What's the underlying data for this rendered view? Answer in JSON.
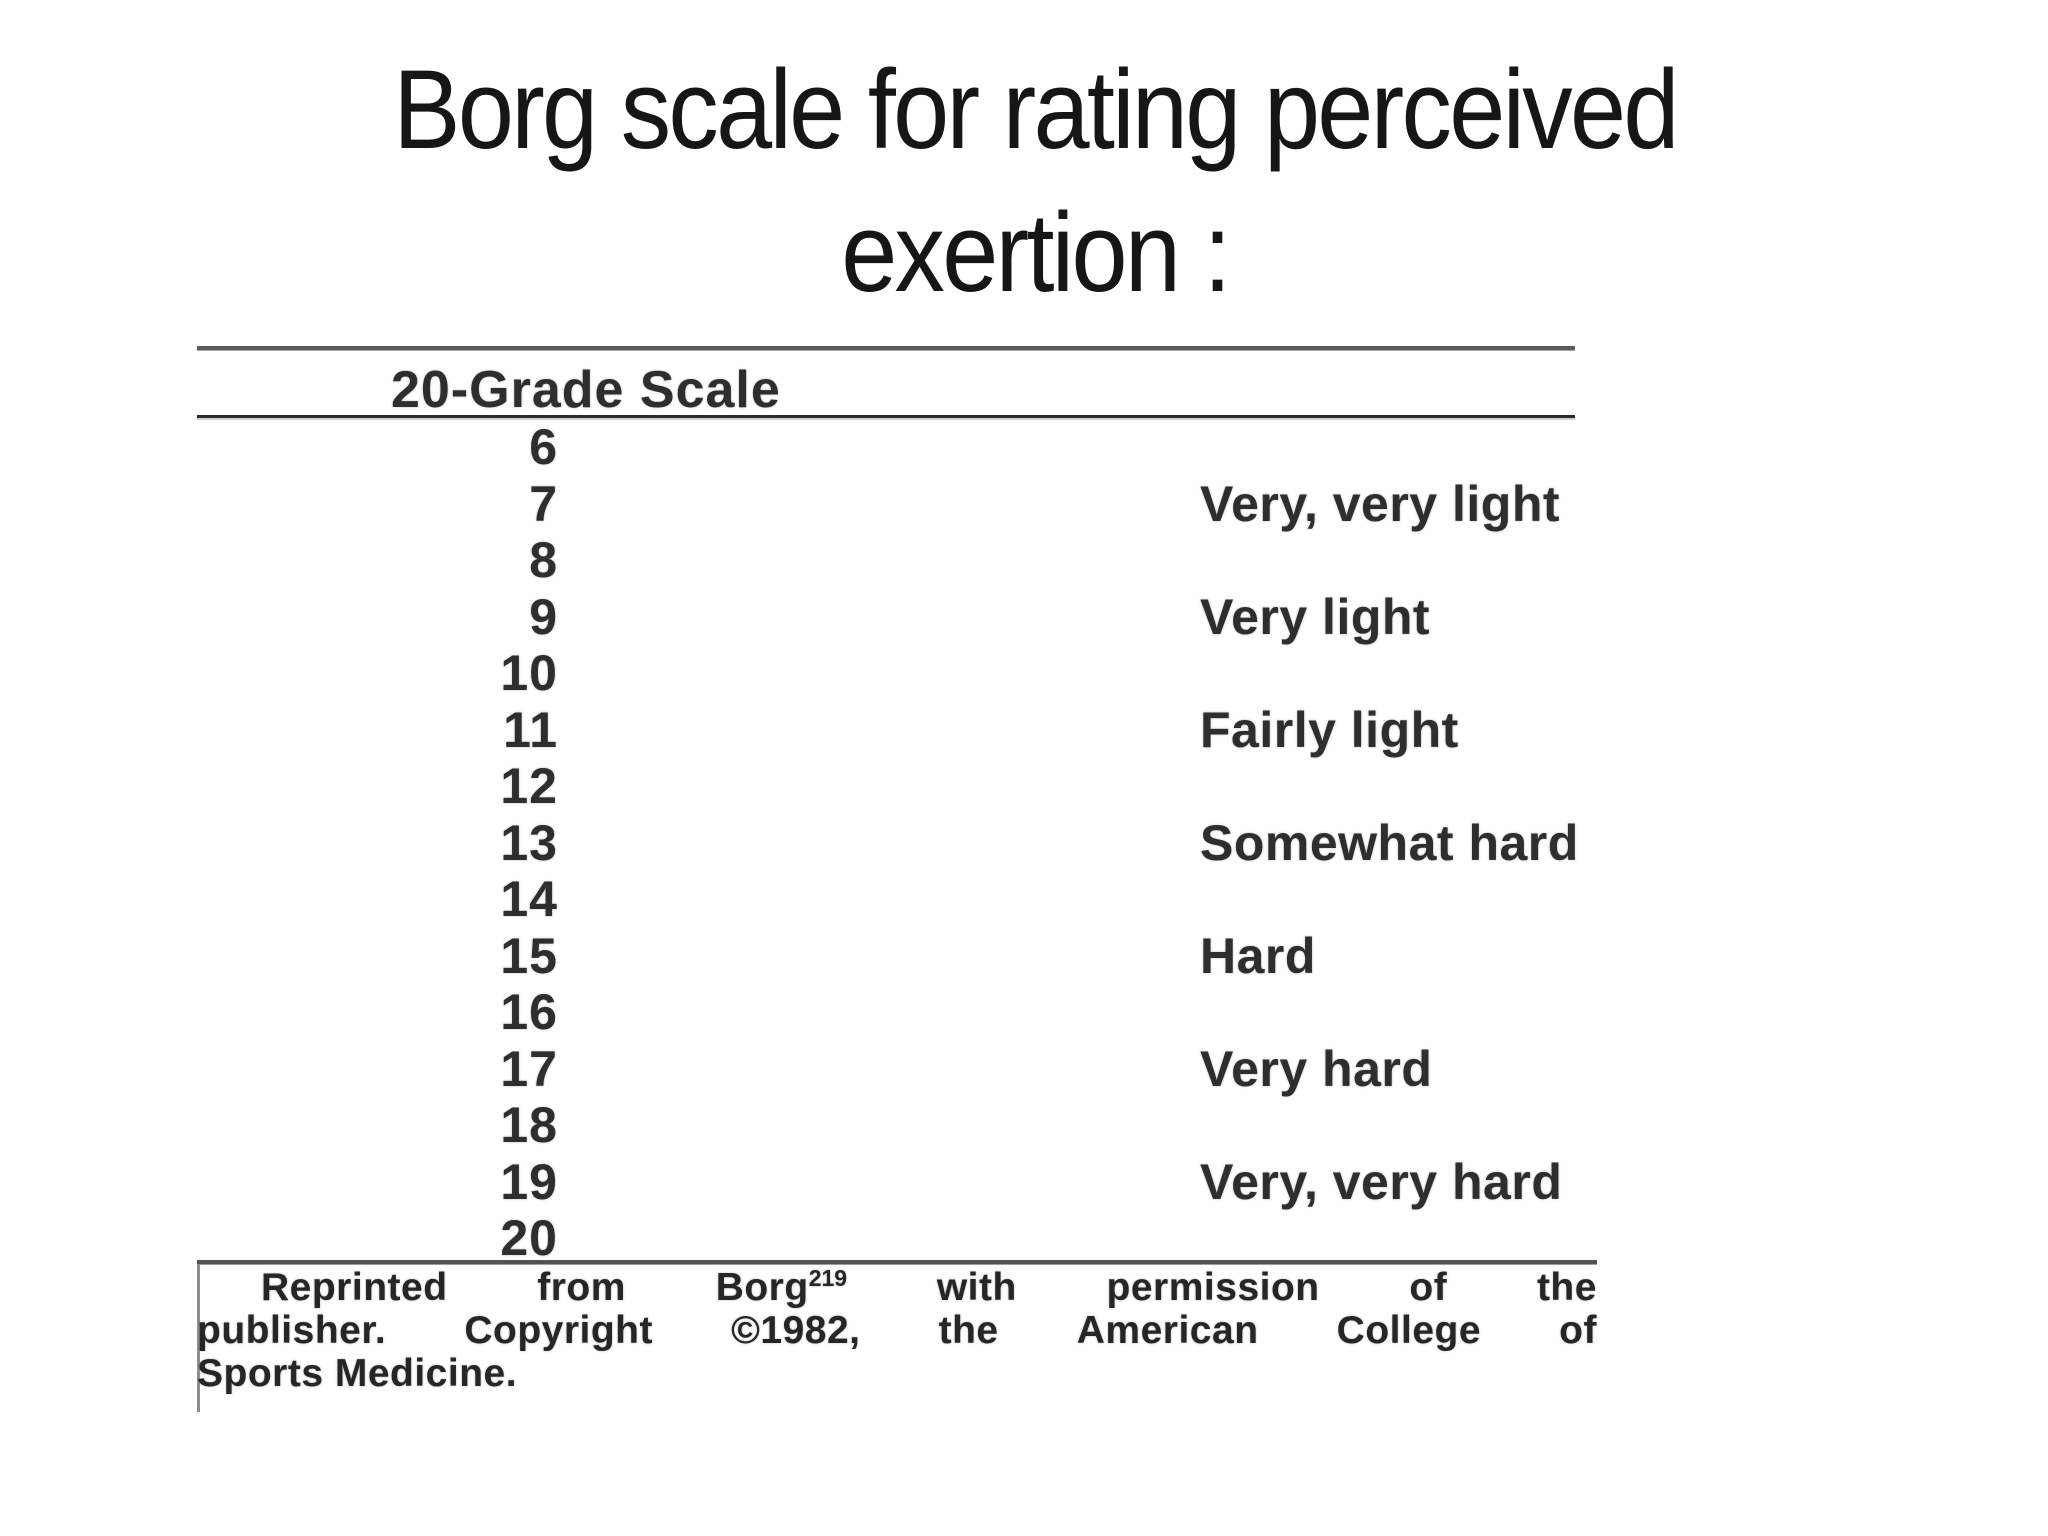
{
  "slide": {
    "title_line1": "Borg scale for rating perceived",
    "title_line2": "exertion :"
  },
  "table": {
    "header": "20-Grade Scale",
    "rows": [
      {
        "grade": "6",
        "label": ""
      },
      {
        "grade": "7",
        "label": "Very, very light"
      },
      {
        "grade": "8",
        "label": ""
      },
      {
        "grade": "9",
        "label": "Very light"
      },
      {
        "grade": "10",
        "label": ""
      },
      {
        "grade": "11",
        "label": "Fairly light"
      },
      {
        "grade": "12",
        "label": ""
      },
      {
        "grade": "13",
        "label": "Somewhat hard"
      },
      {
        "grade": "14",
        "label": ""
      },
      {
        "grade": "15",
        "label": "Hard"
      },
      {
        "grade": "16",
        "label": ""
      },
      {
        "grade": "17",
        "label": "Very hard"
      },
      {
        "grade": "18",
        "label": ""
      },
      {
        "grade": "19",
        "label": "Very, very hard"
      },
      {
        "grade": "20",
        "label": ""
      }
    ]
  },
  "citation": {
    "l1w1": "Reprinted",
    "l1w2": "from",
    "l1w3base": "Borg",
    "l1w3sup": "219",
    "l1w4": "with",
    "l1w5": "permission",
    "l1w6": "of",
    "l1w7": "the",
    "l2w1": "publisher.",
    "l2w2": "Copyright",
    "l2w3": "©1982,",
    "l2w4": "the",
    "l2w5": "American",
    "l2w6": "College",
    "l2w7": "of",
    "line3": "Sports Medicine."
  },
  "colors": {
    "background": "#ffffff",
    "title_text": "#161616",
    "scan_text": "#2e2e2e",
    "rule_dark": "#2b2b2b",
    "rule_gray": "#5c5c5c"
  }
}
